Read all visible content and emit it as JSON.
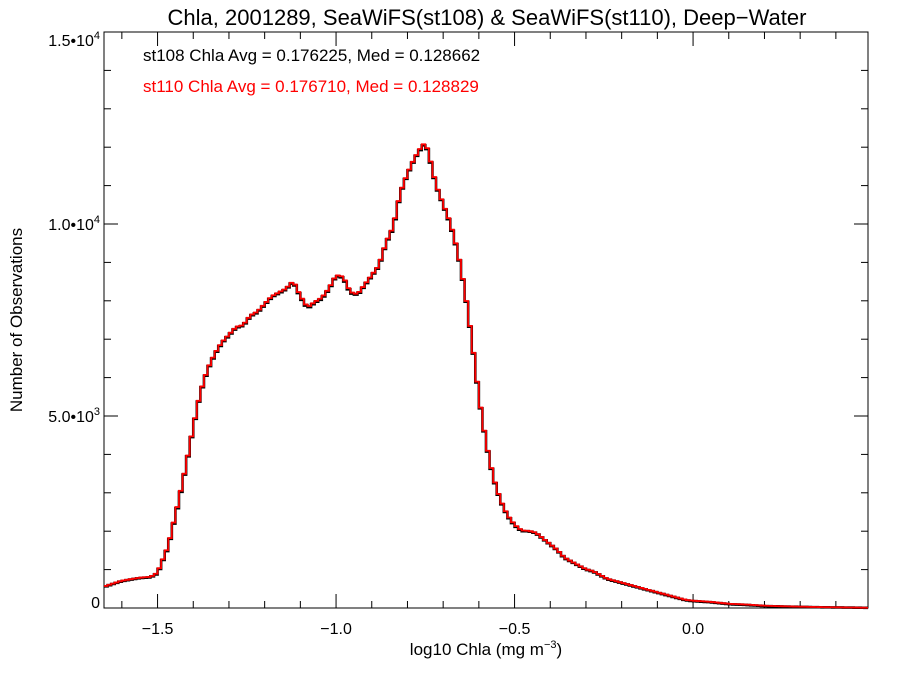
{
  "chart_data": {
    "type": "line",
    "title": "Chla, 2001289, SeaWiFS(st108) & SeaWiFS(st110), Deep−Water",
    "xlabel": "log10 Chla (mg m",
    "xlabel_sup": "−3",
    "xlabel_end": ")",
    "ylabel": "Number of Observations",
    "xlim": [
      -1.65,
      0.49
    ],
    "ylim": [
      0,
      15000
    ],
    "x_ticks": [
      {
        "value": -1.5,
        "label": "−1.5"
      },
      {
        "value": -1.0,
        "label": "−1.0"
      },
      {
        "value": -0.5,
        "label": "−0.5"
      },
      {
        "value": 0.0,
        "label": "0.0"
      }
    ],
    "y_ticks": [
      {
        "value": 0,
        "label": "0",
        "sup": ""
      },
      {
        "value": 5000,
        "label": "5.0•10",
        "sup": "3"
      },
      {
        "value": 10000,
        "label": "1.0•10",
        "sup": "4"
      },
      {
        "value": 15000,
        "label": "1.5•10",
        "sup": "4"
      }
    ],
    "annotations": [
      {
        "text": "st108 Chla Avg = 0.176225, Med = 0.128662",
        "color": "#000000"
      },
      {
        "text": "st110 Chla Avg = 0.176710, Med = 0.128829",
        "color": "#ff0000"
      }
    ],
    "series": [
      {
        "color": "#000000",
        "x": [
          -1.65,
          -1.6,
          -1.55,
          -1.52,
          -1.5,
          -1.47,
          -1.44,
          -1.42,
          -1.4,
          -1.38,
          -1.36,
          -1.34,
          -1.32,
          -1.3,
          -1.28,
          -1.26,
          -1.24,
          -1.22,
          -1.2,
          -1.18,
          -1.16,
          -1.14,
          -1.12,
          -1.1,
          -1.08,
          -1.06,
          -1.04,
          -1.02,
          -1.0,
          -0.98,
          -0.96,
          -0.94,
          -0.92,
          -0.9,
          -0.88,
          -0.86,
          -0.84,
          -0.82,
          -0.8,
          -0.78,
          -0.76,
          -0.75,
          -0.74,
          -0.72,
          -0.7,
          -0.68,
          -0.66,
          -0.64,
          -0.62,
          -0.6,
          -0.58,
          -0.56,
          -0.54,
          -0.52,
          -0.5,
          -0.48,
          -0.46,
          -0.44,
          -0.42,
          -0.4,
          -0.38,
          -0.36,
          -0.34,
          -0.32,
          -0.3,
          -0.28,
          -0.26,
          -0.24,
          -0.22,
          -0.2,
          -0.18,
          -0.16,
          -0.14,
          -0.12,
          -0.1,
          -0.08,
          -0.06,
          -0.04,
          -0.02,
          0.0,
          0.05,
          0.1,
          0.15,
          0.2,
          0.25,
          0.3,
          0.35,
          0.4,
          0.45,
          0.49
        ],
        "y": [
          550,
          700,
          780,
          800,
          900,
          1600,
          2800,
          3700,
          4700,
          5600,
          6200,
          6600,
          6900,
          7100,
          7300,
          7350,
          7600,
          7700,
          7900,
          8100,
          8200,
          8300,
          8500,
          8100,
          7800,
          7950,
          8050,
          8300,
          8650,
          8600,
          8200,
          8150,
          8400,
          8650,
          8900,
          9500,
          9900,
          10800,
          11300,
          11700,
          12000,
          12100,
          11800,
          11000,
          10500,
          10000,
          9300,
          8300,
          7000,
          5500,
          4300,
          3400,
          2800,
          2400,
          2150,
          2000,
          2000,
          1950,
          1800,
          1650,
          1500,
          1300,
          1200,
          1100,
          1000,
          950,
          850,
          750,
          700,
          650,
          600,
          550,
          500,
          450,
          400,
          350,
          300,
          250,
          200,
          180,
          150,
          100,
          80,
          50,
          40,
          30,
          20,
          15,
          10,
          5
        ]
      },
      {
        "color": "#ff0000",
        "x": [
          -1.65,
          -1.6,
          -1.55,
          -1.52,
          -1.5,
          -1.47,
          -1.44,
          -1.42,
          -1.4,
          -1.38,
          -1.36,
          -1.34,
          -1.32,
          -1.3,
          -1.28,
          -1.26,
          -1.24,
          -1.22,
          -1.2,
          -1.18,
          -1.16,
          -1.14,
          -1.12,
          -1.1,
          -1.08,
          -1.06,
          -1.04,
          -1.02,
          -1.0,
          -0.98,
          -0.96,
          -0.94,
          -0.92,
          -0.9,
          -0.88,
          -0.86,
          -0.84,
          -0.82,
          -0.8,
          -0.78,
          -0.76,
          -0.75,
          -0.74,
          -0.72,
          -0.7,
          -0.68,
          -0.66,
          -0.64,
          -0.62,
          -0.6,
          -0.58,
          -0.56,
          -0.54,
          -0.52,
          -0.5,
          -0.48,
          -0.46,
          -0.44,
          -0.42,
          -0.4,
          -0.38,
          -0.36,
          -0.34,
          -0.32,
          -0.3,
          -0.28,
          -0.26,
          -0.24,
          -0.22,
          -0.2,
          -0.18,
          -0.16,
          -0.14,
          -0.12,
          -0.1,
          -0.08,
          -0.06,
          -0.04,
          -0.02,
          0.0,
          0.05,
          0.1,
          0.15,
          0.2,
          0.25,
          0.3,
          0.35,
          0.4,
          0.45,
          0.49
        ],
        "y": [
          560,
          710,
          790,
          810,
          920,
          1620,
          2830,
          3720,
          4720,
          5620,
          6220,
          6620,
          6920,
          7120,
          7320,
          7370,
          7620,
          7720,
          7920,
          8120,
          8220,
          8320,
          8520,
          8130,
          7830,
          7970,
          8080,
          8320,
          8670,
          8630,
          8230,
          8170,
          8420,
          8670,
          8920,
          9520,
          9930,
          10820,
          11320,
          11720,
          12030,
          12120,
          11830,
          11020,
          10520,
          10030,
          9320,
          8320,
          7020,
          5520,
          4320,
          3420,
          2820,
          2420,
          2170,
          2020,
          2010,
          1960,
          1810,
          1660,
          1510,
          1310,
          1210,
          1110,
          1010,
          960,
          860,
          760,
          710,
          660,
          610,
          560,
          510,
          460,
          410,
          360,
          310,
          260,
          210,
          190,
          160,
          110,
          90,
          60,
          45,
          35,
          25,
          18,
          12,
          6
        ]
      }
    ]
  }
}
